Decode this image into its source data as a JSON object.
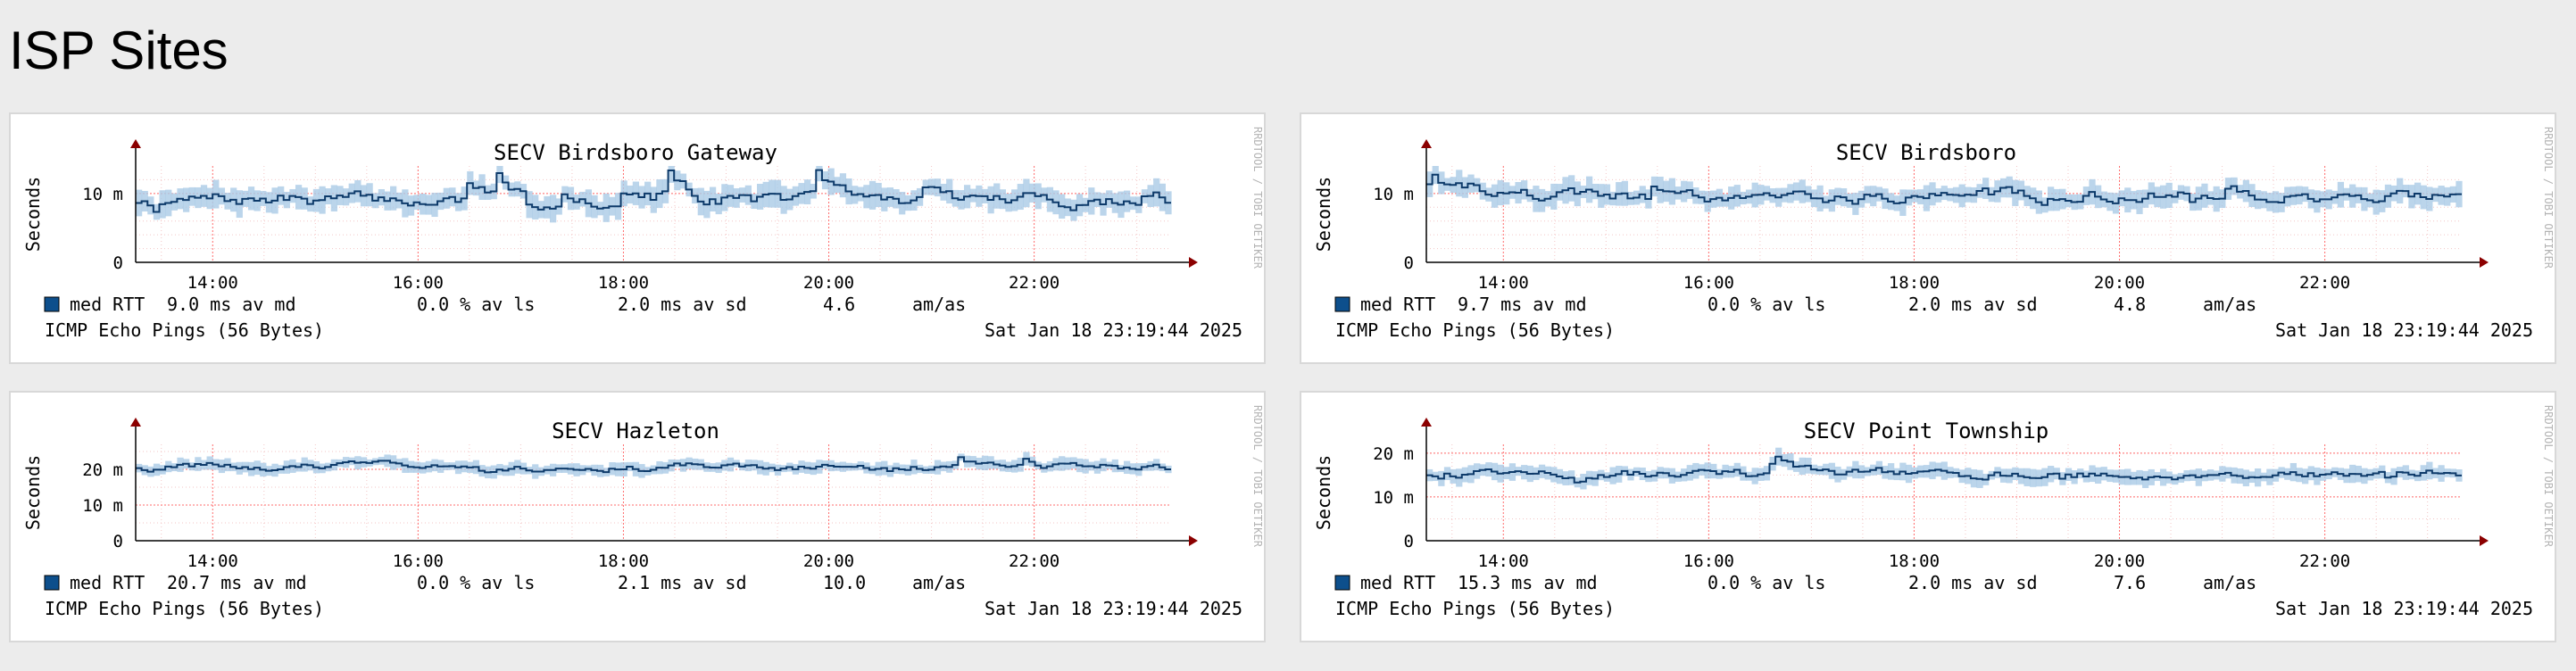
{
  "page": {
    "title": "ISP Sites"
  },
  "common": {
    "y_axis_label": "Seconds",
    "watermark": "RRDTOOL / TOBI OETIKER",
    "x_tick_labels": [
      "14:00",
      "16:00",
      "18:00",
      "20:00",
      "22:00"
    ],
    "legend_swatch_color": "#0d4f8c",
    "median_line_color": "#0d3a6a",
    "band_color": "#aacbe6",
    "grid_color": "#ff6b6b"
  },
  "chart_data": [
    {
      "type": "line",
      "title": "SECV Birdsboro Gateway",
      "ylabel": "Seconds",
      "ylim": [
        0,
        14
      ],
      "y_ticks": [
        {
          "v": 0,
          "label": "0"
        },
        {
          "v": 10,
          "label": "10 m"
        }
      ],
      "xlim": [
        "13:15",
        "23:20"
      ],
      "x_ticks": [
        "14:00",
        "16:00",
        "18:00",
        "20:00",
        "22:00"
      ],
      "series": [
        {
          "name": "med RTT",
          "baseline_ms": 9.0,
          "noise_ms": 1.6,
          "seed": 7
        }
      ],
      "legend": {
        "series_name": "med RTT",
        "stats": [
          "9.0 ms av md",
          "0.0 % av ls",
          "2.0 ms av sd",
          "4.6",
          "am/as"
        ]
      },
      "footer_left": "ICMP Echo Pings (56 Bytes)",
      "footer_right": "Sat Jan 18 23:19:44 2025"
    },
    {
      "type": "line",
      "title": "SECV Birdsboro",
      "ylabel": "Seconds",
      "ylim": [
        0,
        14
      ],
      "y_ticks": [
        {
          "v": 0,
          "label": "0"
        },
        {
          "v": 10,
          "label": "10 m"
        }
      ],
      "xlim": [
        "13:15",
        "23:20"
      ],
      "x_ticks": [
        "14:00",
        "16:00",
        "18:00",
        "20:00",
        "22:00"
      ],
      "series": [
        {
          "name": "med RTT",
          "baseline_ms": 9.7,
          "noise_ms": 1.5,
          "seed": 19
        }
      ],
      "legend": {
        "series_name": "med RTT",
        "stats": [
          "9.7 ms av md",
          "0.0 % av ls",
          "2.0 ms av sd",
          "4.8",
          "am/as"
        ]
      },
      "footer_left": "ICMP Echo Pings (56 Bytes)",
      "footer_right": "Sat Jan 18 23:19:44 2025"
    },
    {
      "type": "line",
      "title": "SECV Hazleton",
      "ylabel": "Seconds",
      "ylim": [
        0,
        27
      ],
      "y_ticks": [
        {
          "v": 0,
          "label": "0"
        },
        {
          "v": 10,
          "label": "10 m"
        },
        {
          "v": 20,
          "label": "20 m"
        }
      ],
      "xlim": [
        "13:15",
        "23:20"
      ],
      "x_ticks": [
        "14:00",
        "16:00",
        "18:00",
        "20:00",
        "22:00"
      ],
      "series": [
        {
          "name": "med RTT",
          "baseline_ms": 20.7,
          "noise_ms": 1.6,
          "seed": 31
        }
      ],
      "legend": {
        "series_name": "med RTT",
        "stats": [
          "20.7 ms av md",
          "0.0 % av ls",
          "2.1 ms av sd",
          "10.0",
          "am/as"
        ]
      },
      "footer_left": "ICMP Echo Pings (56 Bytes)",
      "footer_right": "Sat Jan 18 23:19:44 2025"
    },
    {
      "type": "line",
      "title": "SECV Point Township",
      "ylabel": "Seconds",
      "ylim": [
        0,
        22
      ],
      "y_ticks": [
        {
          "v": 0,
          "label": "0"
        },
        {
          "v": 10,
          "label": "10 m"
        },
        {
          "v": 20,
          "label": "20 m"
        }
      ],
      "xlim": [
        "13:15",
        "23:20"
      ],
      "x_ticks": [
        "14:00",
        "16:00",
        "18:00",
        "20:00",
        "22:00"
      ],
      "series": [
        {
          "name": "med RTT",
          "baseline_ms": 15.3,
          "noise_ms": 1.6,
          "seed": 43
        }
      ],
      "legend": {
        "series_name": "med RTT",
        "stats": [
          "15.3 ms av md",
          "0.0 % av ls",
          "2.0 ms av sd",
          "7.6",
          "am/as"
        ]
      },
      "footer_left": "ICMP Echo Pings (56 Bytes)",
      "footer_right": "Sat Jan 18 23:19:44 2025"
    }
  ]
}
